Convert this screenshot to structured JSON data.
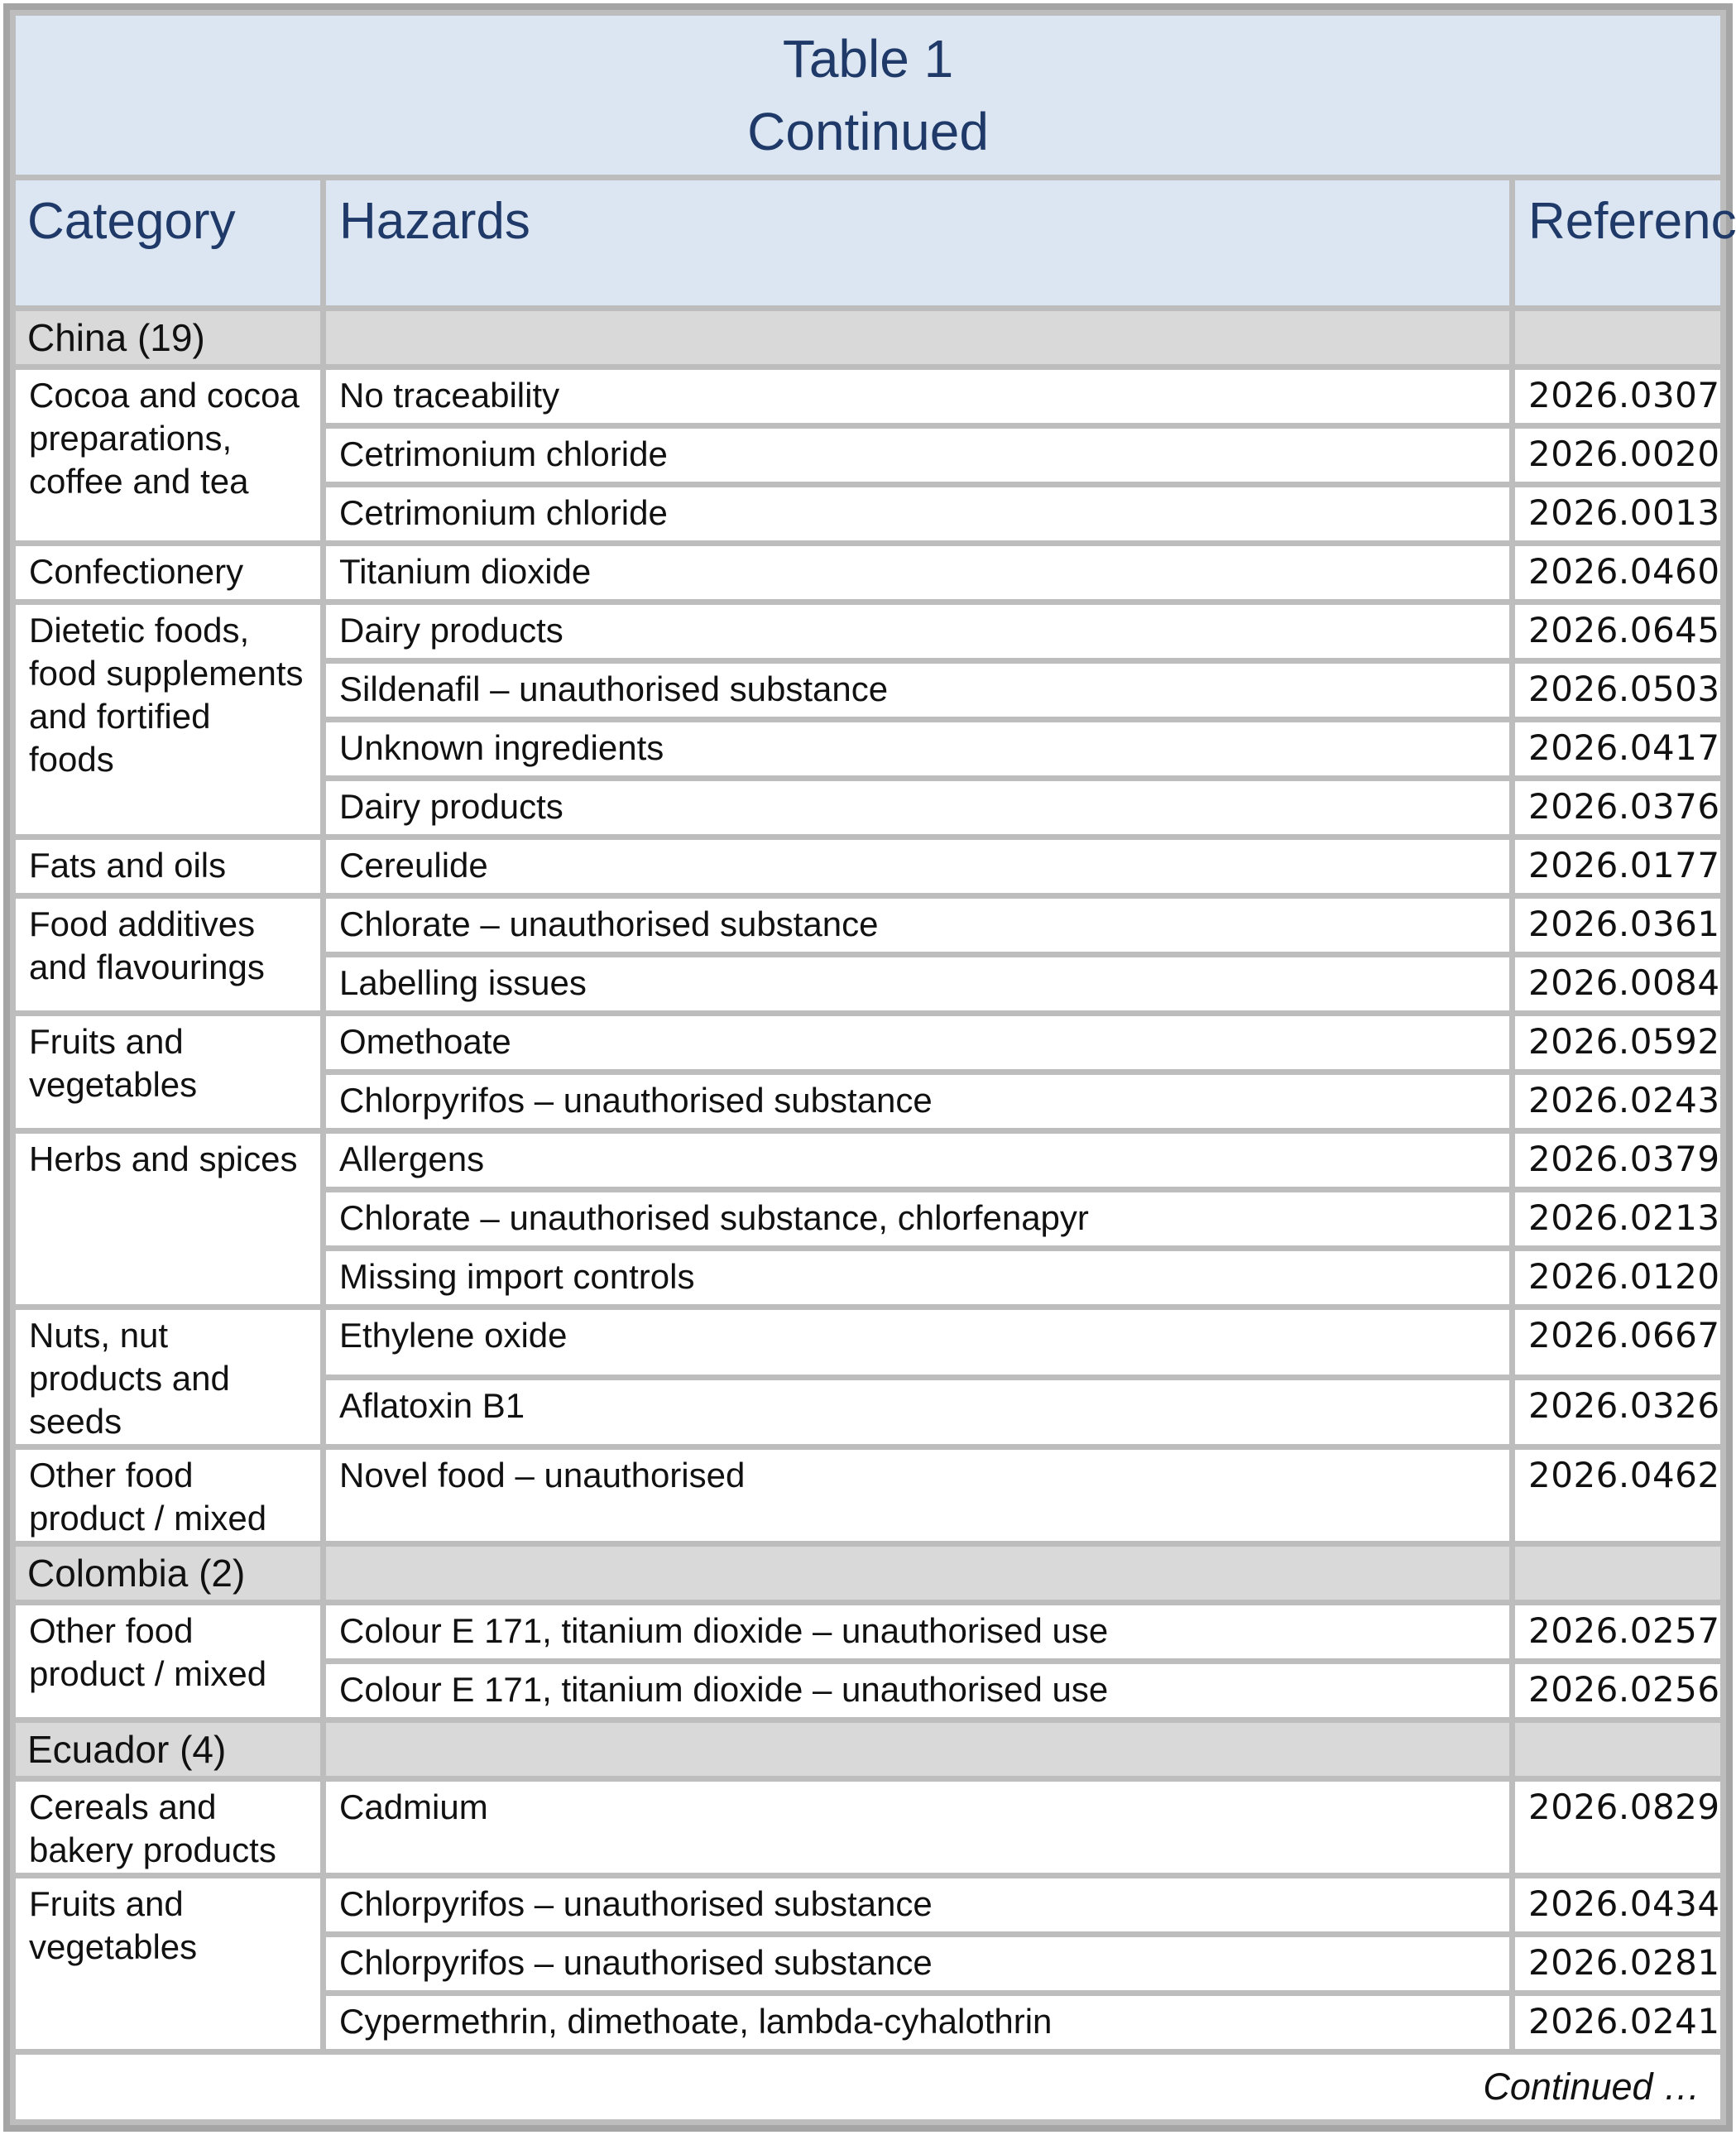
{
  "title": {
    "line1": "Table 1",
    "line2": "Continued"
  },
  "columns": {
    "category": "Category",
    "hazards": "Hazards",
    "reference": "Reference"
  },
  "footer": {
    "continued": "Continued …"
  },
  "colors": {
    "header_bg": "#dce6f2",
    "header_text": "#1f3a68",
    "section_bg": "#d9d9d9",
    "row_bg": "#ffffff",
    "grid_line": "#bdbdbd",
    "outer_border": "#a5a5a5",
    "body_text": "#111111"
  },
  "sections": [
    {
      "label": "China (19)",
      "groups": [
        {
          "category": "Cocoa and cocoa\npreparations,\ncoffee and tea",
          "rows": [
            {
              "hazard": "No traceability",
              "ref": "2026.0307"
            },
            {
              "hazard": "Cetrimonium chloride",
              "ref": "2026.0020"
            },
            {
              "hazard": "Cetrimonium chloride",
              "ref": "2026.0013"
            }
          ]
        },
        {
          "category": "Confectionery",
          "rows": [
            {
              "hazard": "Titanium dioxide",
              "ref": "2026.0460"
            }
          ]
        },
        {
          "category": "Dietetic foods,\nfood supplements\nand fortified\nfoods",
          "rows": [
            {
              "hazard": "Dairy products",
              "ref": "2026.0645"
            },
            {
              "hazard": "Sildenafil – unauthorised substance",
              "ref": "2026.0503"
            },
            {
              "hazard": "Unknown ingredients",
              "ref": "2026.0417"
            },
            {
              "hazard": "Dairy products",
              "ref": "2026.0376"
            }
          ]
        },
        {
          "category": "Fats and oils",
          "rows": [
            {
              "hazard": "Cereulide",
              "ref": "2026.0177"
            }
          ]
        },
        {
          "category": "Food additives\nand flavourings",
          "rows": [
            {
              "hazard": "Chlorate – unauthorised substance",
              "ref": "2026.0361"
            },
            {
              "hazard": "Labelling issues",
              "ref": "2026.0084"
            }
          ]
        },
        {
          "category": "Fruits and\nvegetables",
          "rows": [
            {
              "hazard": "Omethoate",
              "ref": "2026.0592"
            },
            {
              "hazard": "Chlorpyrifos – unauthorised substance",
              "ref": "2026.0243"
            }
          ]
        },
        {
          "category": "Herbs and spices",
          "rows": [
            {
              "hazard": "Allergens",
              "ref": "2026.0379"
            },
            {
              "hazard": "Chlorate – unauthorised substance, chlorfenapyr",
              "ref": "2026.0213"
            },
            {
              "hazard": "Missing import controls",
              "ref": "2026.0120"
            }
          ]
        },
        {
          "category": "Nuts, nut\nproducts and\nseeds",
          "rows": [
            {
              "hazard": "Ethylene oxide",
              "ref": "2026.0667"
            },
            {
              "hazard": "Aflatoxin B1",
              "ref": "2026.0326"
            }
          ]
        },
        {
          "category": "Other food\nproduct / mixed",
          "rows": [
            {
              "hazard": "Novel food – unauthorised",
              "ref": "2026.0462"
            }
          ]
        }
      ]
    },
    {
      "label": "Colombia (2)",
      "groups": [
        {
          "category": "Other food\nproduct / mixed",
          "rows": [
            {
              "hazard": "Colour E 171, titanium dioxide – unauthorised use",
              "ref": "2026.0257"
            },
            {
              "hazard": "Colour E 171, titanium dioxide – unauthorised use",
              "ref": "2026.0256"
            }
          ]
        }
      ]
    },
    {
      "label": "Ecuador (4)",
      "groups": [
        {
          "category": "Cereals and\nbakery products",
          "rows": [
            {
              "hazard": "Cadmium",
              "ref": "2026.0829"
            }
          ]
        },
        {
          "category": "Fruits and\nvegetables",
          "rows": [
            {
              "hazard": "Chlorpyrifos – unauthorised substance",
              "ref": "2026.0434"
            },
            {
              "hazard": "Chlorpyrifos – unauthorised substance",
              "ref": "2026.0281"
            },
            {
              "hazard": "Cypermethrin, dimethoate, lambda-cyhalothrin",
              "ref": "2026.0241"
            }
          ]
        }
      ]
    }
  ]
}
